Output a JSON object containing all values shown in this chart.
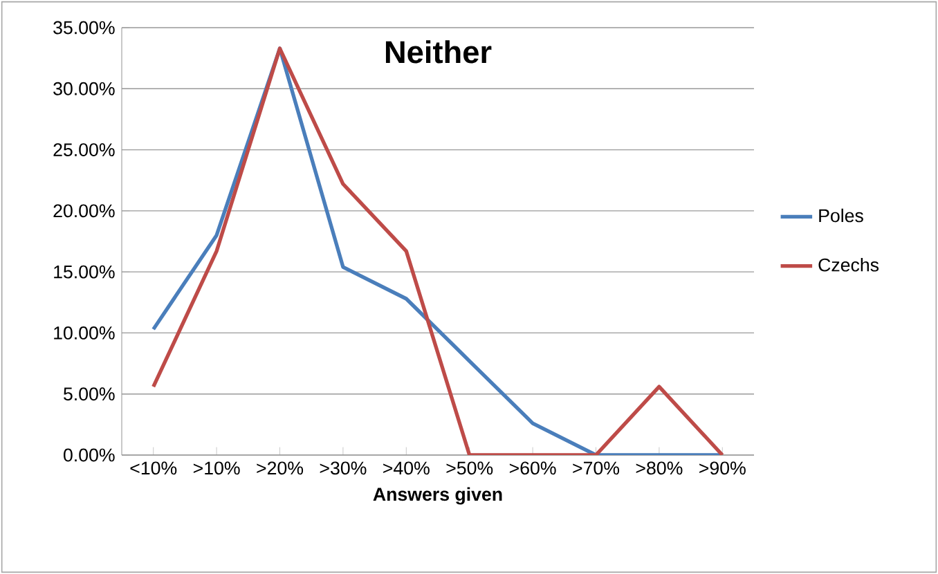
{
  "chart_data": {
    "type": "line",
    "title": "Neither",
    "xlabel": "Answers given",
    "categories": [
      "<10%",
      ">10%",
      ">20%",
      ">30%",
      ">40%",
      ">50%",
      ">60%",
      ">70%",
      ">80%",
      ">90%"
    ],
    "series": [
      {
        "name": "Poles",
        "color": "#4a7ebb",
        "values": [
          10.3,
          18,
          33.3,
          15.4,
          12.8,
          7.7,
          2.6,
          0,
          0,
          0
        ]
      },
      {
        "name": "Czechs",
        "color": "#be4b48",
        "values": [
          5.6,
          16.7,
          33.3,
          22.2,
          16.7,
          0,
          0,
          0,
          5.6,
          0
        ]
      }
    ],
    "ylim": [
      0,
      35
    ],
    "yticks": [
      {
        "value": 0,
        "label": "0.00%"
      },
      {
        "value": 5,
        "label": "5.00%"
      },
      {
        "value": 10,
        "label": "10.00%"
      },
      {
        "value": 15,
        "label": "15.00%"
      },
      {
        "value": 20,
        "label": "20.00%"
      },
      {
        "value": 25,
        "label": "25.00%"
      },
      {
        "value": 30,
        "label": "30.00%"
      },
      {
        "value": 35,
        "label": "35.00%"
      }
    ],
    "grid": "y",
    "legend": "right",
    "marker": "none",
    "line_style": "solid"
  }
}
